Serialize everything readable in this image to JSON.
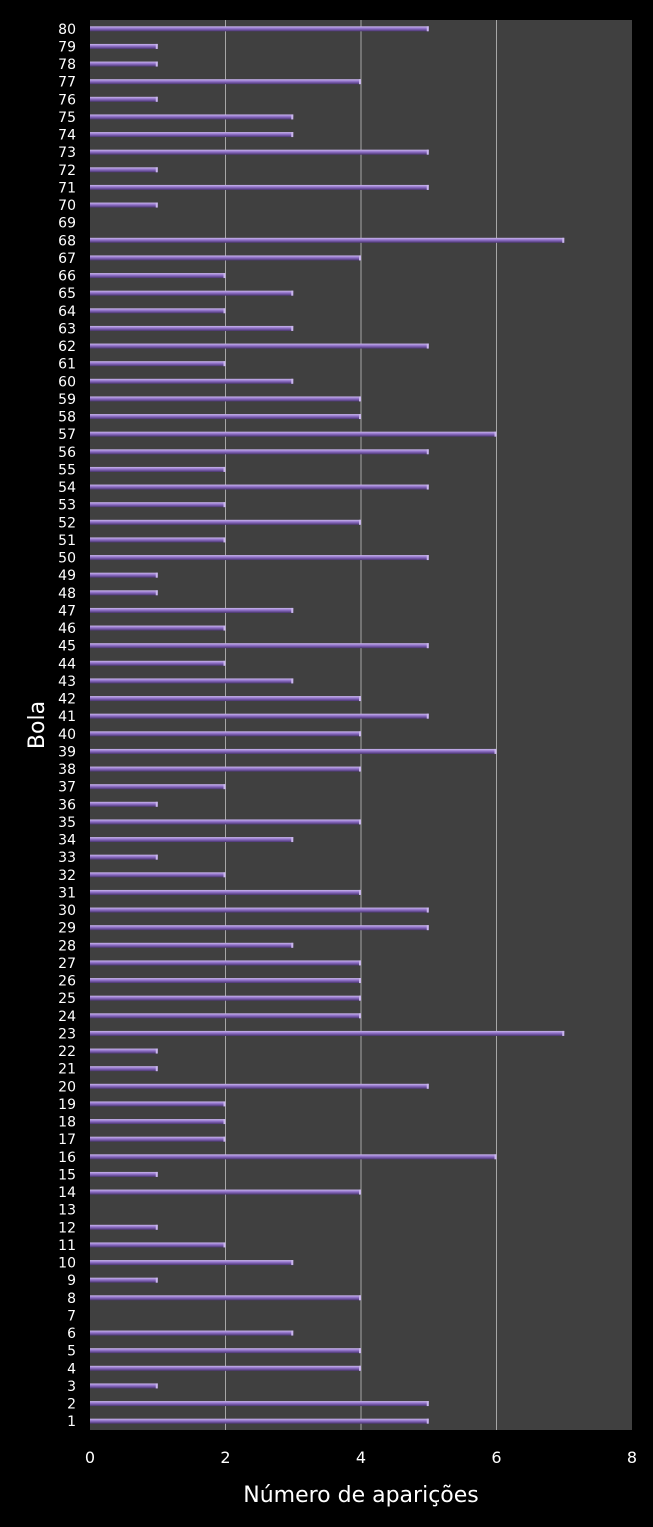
{
  "chart_data": {
    "type": "bar",
    "orientation": "horizontal",
    "xlabel": "Número de aparições",
    "ylabel": "Bola",
    "xlim": [
      0,
      8
    ],
    "x_ticks": [
      0,
      2,
      4,
      6,
      8
    ],
    "grid": "vertical",
    "colors": {
      "background": "#000000",
      "plot_area": "#404040",
      "gridline": "#a6a6a6",
      "bar": "#8a6bc2",
      "bar_highlight": "#c9b6ec",
      "bar_shadow": "#3a2a5a",
      "text": "#ffffff"
    },
    "categories": [
      "1",
      "2",
      "3",
      "4",
      "5",
      "6",
      "7",
      "8",
      "9",
      "10",
      "11",
      "12",
      "13",
      "14",
      "15",
      "16",
      "17",
      "18",
      "19",
      "20",
      "21",
      "22",
      "23",
      "24",
      "25",
      "26",
      "27",
      "28",
      "29",
      "30",
      "31",
      "32",
      "33",
      "34",
      "35",
      "36",
      "37",
      "38",
      "39",
      "40",
      "41",
      "42",
      "43",
      "44",
      "45",
      "46",
      "47",
      "48",
      "49",
      "50",
      "51",
      "52",
      "53",
      "54",
      "55",
      "56",
      "57",
      "58",
      "59",
      "60",
      "61",
      "62",
      "63",
      "64",
      "65",
      "66",
      "67",
      "68",
      "69",
      "70",
      "71",
      "72",
      "73",
      "74",
      "75",
      "76",
      "77",
      "78",
      "79",
      "80"
    ],
    "values": [
      5,
      5,
      1,
      4,
      4,
      3,
      0,
      4,
      1,
      3,
      2,
      1,
      0,
      4,
      1,
      6,
      2,
      2,
      2,
      5,
      1,
      1,
      7,
      4,
      4,
      4,
      4,
      3,
      5,
      5,
      4,
      2,
      1,
      3,
      4,
      1,
      2,
      4,
      6,
      4,
      5,
      4,
      3,
      2,
      5,
      2,
      3,
      1,
      1,
      5,
      2,
      4,
      2,
      5,
      2,
      5,
      6,
      4,
      4,
      3,
      2,
      5,
      3,
      2,
      3,
      2,
      4,
      7,
      0,
      1,
      5,
      1,
      5,
      3,
      3,
      1,
      4,
      1,
      1,
      5
    ]
  }
}
